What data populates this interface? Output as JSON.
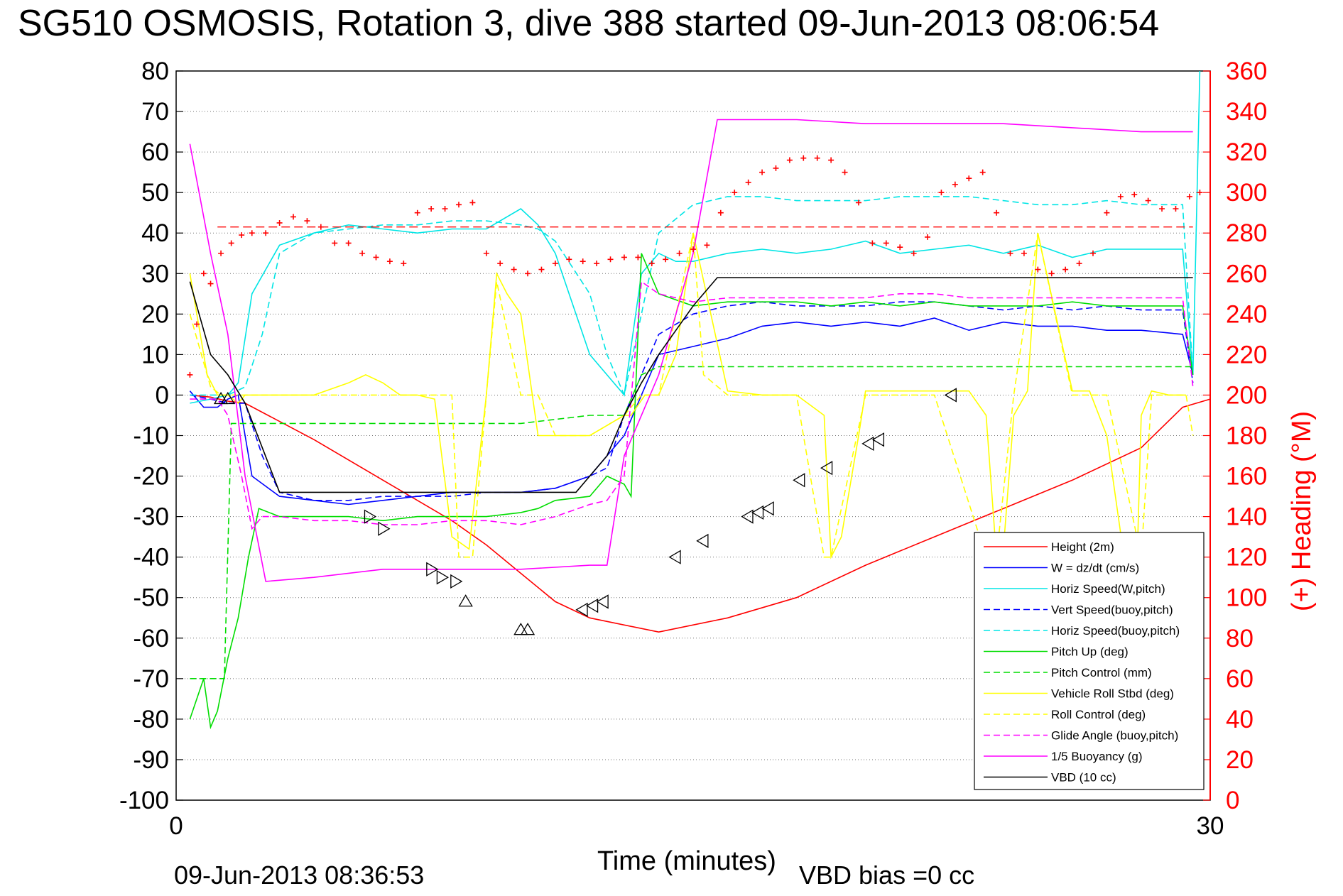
{
  "chart_data": {
    "type": "line",
    "title": "SG510 OSMOSIS, Rotation 3, dive 388 started 09-Jun-2013 08:06:54",
    "xlabel": "Time (minutes)",
    "xlim": [
      0,
      30
    ],
    "x_ticks": [
      "0",
      "30"
    ],
    "ylim": [
      -100,
      80
    ],
    "y_ticks": [
      "80",
      "70",
      "60",
      "50",
      "40",
      "30",
      "20",
      "10",
      "0",
      "-10",
      "-20",
      "-30",
      "-40",
      "-50",
      "-60",
      "-70",
      "-80",
      "-90",
      "-100"
    ],
    "y2label": "(+) Heading (°M)",
    "y2lim": [
      0,
      360
    ],
    "y2_ticks": [
      "360",
      "340",
      "320",
      "300",
      "280",
      "260",
      "240",
      "220",
      "200",
      "180",
      "160",
      "140",
      "120",
      "100",
      "80",
      "60",
      "40",
      "20",
      "0"
    ],
    "grid": true,
    "legend_position": "bottom-right",
    "footer_left": "09-Jun-2013 08:36:53",
    "footer_right": "VBD bias =0 cc",
    "colors": {
      "height": "#ff0000",
      "w": "#0000ff",
      "horiz_w": "#00e5e5",
      "vert_buoy": "#0000ff",
      "horiz_buoy": "#00e5e5",
      "pitch": "#00dd00",
      "pitch_ctrl": "#00dd00",
      "roll": "#ffff00",
      "roll_ctrl": "#ffff00",
      "glide": "#ff00ff",
      "buoy": "#ff00ff",
      "vbd": "#000000",
      "heading": "#ff0000"
    },
    "series": [
      {
        "name": "Height (2m)",
        "style": "solid",
        "color": "#ff0000",
        "x": [
          0.4,
          1.0,
          1.5,
          2.0,
          4.0,
          6.0,
          8.0,
          9.0,
          10.0,
          11.0,
          12.0,
          14.0,
          16.0,
          18.0,
          20.0,
          22.0,
          24.0,
          26.0,
          28.0,
          29.2,
          30.0
        ],
        "values": [
          0,
          -0.5,
          -1.5,
          -2,
          -11,
          -21,
          -31,
          -37,
          -44,
          -51,
          -55,
          -58.5,
          -55,
          -50,
          -42,
          -35,
          -28,
          -21,
          -13,
          -3,
          -1
        ]
      },
      {
        "name": "W = dz/dt (cm/s)",
        "style": "solid",
        "color": "#0000ff",
        "x": [
          0.4,
          0.8,
          1.2,
          1.5,
          1.8,
          2.2,
          3,
          4,
          5,
          6,
          7,
          8,
          9,
          10,
          11,
          12,
          13,
          14,
          15,
          16,
          17,
          18,
          19,
          20,
          21,
          22,
          23,
          24,
          25,
          26,
          27,
          28,
          29.2,
          29.5
        ],
        "values": [
          1,
          -3,
          -3,
          -1,
          0,
          -20,
          -25,
          -26,
          -27,
          -26,
          -25,
          -24,
          -24,
          -24,
          -23,
          -20,
          -10,
          10,
          12,
          14,
          17,
          18,
          17,
          18,
          17,
          19,
          16,
          18,
          17,
          17,
          16,
          16,
          15,
          5
        ]
      },
      {
        "name": "Horiz Speed(W,pitch)",
        "style": "solid",
        "color": "#00e5e5",
        "x": [
          0.4,
          1.0,
          1.5,
          1.8,
          2.2,
          3,
          4,
          5,
          6,
          7,
          8,
          9,
          10,
          10.5,
          11,
          12,
          13,
          13.5,
          14,
          14.5,
          15,
          16,
          17,
          18,
          19,
          20,
          21,
          22,
          23,
          24,
          25,
          26,
          27,
          28,
          29.2,
          29.5,
          29.7
        ],
        "values": [
          -2,
          -1,
          0,
          3,
          25,
          37,
          40,
          42,
          41,
          40,
          41,
          41,
          46,
          42,
          35,
          10,
          0,
          30,
          35,
          33,
          33,
          35,
          36,
          35,
          36,
          38,
          35,
          36,
          37,
          35,
          37,
          34,
          36,
          36,
          36,
          5,
          80
        ]
      },
      {
        "name": "Vert Speed(buoy,pitch)",
        "style": "dashed",
        "color": "#0000ff",
        "x": [
          0.4,
          1.0,
          1.5,
          2.0,
          2.5,
          3,
          4,
          5,
          6,
          7,
          8,
          9,
          10,
          11,
          12,
          12.5,
          13,
          14,
          15,
          16,
          17,
          18,
          19,
          20,
          21,
          22,
          23,
          24,
          25,
          26,
          27,
          28,
          29.2,
          29.5
        ],
        "values": [
          0,
          -1,
          -2,
          -2,
          -15,
          -24,
          -26,
          -26,
          -25,
          -25,
          -25,
          -24,
          -24,
          -23,
          -20,
          -18,
          -5,
          15,
          20,
          22,
          23,
          22,
          22,
          22,
          23,
          23,
          22,
          21,
          22,
          21,
          22,
          21,
          21,
          3
        ]
      },
      {
        "name": "Horiz Speed(buoy,pitch)",
        "style": "dashed",
        "color": "#00e5e5",
        "x": [
          0.4,
          1.0,
          1.5,
          2.0,
          2.5,
          3,
          4,
          5,
          6,
          7,
          8,
          9,
          10,
          10.5,
          11,
          12,
          12.5,
          13,
          13.5,
          14,
          15,
          16,
          17,
          18,
          19,
          20,
          21,
          22,
          23,
          24,
          25,
          26,
          27,
          28,
          29.2,
          29.5
        ],
        "values": [
          0,
          0,
          0,
          2,
          15,
          35,
          40,
          41,
          42,
          42,
          43,
          43,
          42,
          41,
          38,
          25,
          10,
          0,
          20,
          40,
          47,
          49,
          49,
          48,
          48,
          48,
          49,
          49,
          49,
          48,
          47,
          47,
          48,
          47,
          47,
          5
        ]
      },
      {
        "name": "Pitch Up (deg)",
        "style": "solid",
        "color": "#00dd00",
        "x": [
          0.4,
          0.8,
          1.0,
          1.2,
          1.5,
          1.8,
          2.1,
          2.4,
          3,
          4,
          5,
          6,
          7,
          8,
          9,
          10,
          10.5,
          11,
          12,
          12.5,
          13,
          13.2,
          13.5,
          14,
          15,
          16,
          17,
          18,
          19,
          20,
          21,
          22,
          23,
          24,
          25,
          26,
          27,
          28,
          29.2,
          29.5
        ],
        "values": [
          -80,
          -70,
          -82,
          -78,
          -65,
          -55,
          -40,
          -28,
          -30,
          -30,
          -30,
          -31,
          -30,
          -30,
          -30,
          -29,
          -28,
          -26,
          -25,
          -20,
          -22,
          -25,
          35,
          25,
          22,
          23,
          23,
          23,
          22,
          23,
          22,
          23,
          22,
          22,
          22,
          23,
          22,
          22,
          22,
          5
        ]
      },
      {
        "name": "Pitch Control (mm)",
        "style": "dashed",
        "color": "#00dd00",
        "x": [
          0.4,
          1.4,
          1.6,
          2.2,
          4,
          8,
          10,
          12,
          13,
          13.5,
          14,
          16,
          20,
          24,
          28,
          29.5
        ],
        "values": [
          -70,
          -70,
          -7,
          -7,
          -7,
          -7,
          -7,
          -5,
          -5,
          5,
          7,
          7,
          7,
          7,
          7,
          7
        ]
      },
      {
        "name": "Vehicle Roll Stbd (deg)",
        "style": "solid",
        "color": "#ffff00",
        "x": [
          0.4,
          0.6,
          0.9,
          1.2,
          1.5,
          1.8,
          2,
          3,
          4,
          5,
          5.5,
          6,
          6.5,
          7,
          7.5,
          8,
          8.5,
          9,
          9.3,
          9.6,
          10,
          10.5,
          11,
          12,
          13,
          13.2,
          13.6,
          14,
          14.5,
          15,
          16,
          17,
          18,
          18.8,
          19,
          19.3,
          19.8,
          20,
          21,
          22,
          23,
          23.5,
          23.8,
          24,
          24.3,
          24.7,
          25,
          26,
          26.5,
          27,
          27.5,
          27.9,
          28,
          28.3,
          28.8,
          29.3
        ],
        "values": [
          30,
          20,
          5,
          0,
          0,
          -2,
          0,
          0,
          0,
          3,
          5,
          3,
          0,
          0,
          -1,
          -35,
          -38,
          0,
          30,
          25,
          20,
          -10,
          -10,
          -10,
          -5,
          -5,
          0,
          0,
          10,
          40,
          1,
          0,
          0,
          -5,
          -40,
          -35,
          -10,
          1,
          1,
          1,
          1,
          -5,
          -40,
          -38,
          -5,
          1,
          40,
          1,
          1,
          -10,
          -40,
          -35,
          -5,
          1,
          0,
          0
        ]
      },
      {
        "name": "Roll Control (deg)",
        "style": "dashed",
        "color": "#ffff00",
        "x": [
          0.4,
          1.0,
          1.3,
          2,
          4,
          6,
          8,
          8.2,
          8.6,
          9,
          9.3,
          10,
          10.5,
          11,
          12,
          13,
          13.5,
          14,
          15,
          15.3,
          16,
          18,
          18.8,
          19,
          20,
          22,
          23.5,
          23.8,
          24.3,
          25,
          26,
          27,
          28,
          28.3,
          29.3,
          29.5
        ],
        "values": [
          20,
          2,
          0,
          0,
          0,
          0,
          0,
          -40,
          -40,
          0,
          28,
          0,
          0,
          -10,
          -10,
          -5,
          0,
          0,
          40,
          5,
          0,
          0,
          -40,
          -40,
          0,
          0,
          -40,
          -40,
          0,
          40,
          0,
          0,
          -40,
          0,
          0,
          -10
        ]
      },
      {
        "name": "Glide Angle (buoy,pitch)",
        "style": "dashed",
        "color": "#ff00ff",
        "x": [
          0.4,
          1.2,
          1.5,
          1.9,
          2.2,
          2.5,
          3,
          4,
          5,
          6,
          7,
          8,
          9,
          10,
          11,
          12,
          12.5,
          13,
          13.5,
          14,
          15,
          16,
          17,
          18,
          19,
          20,
          21,
          22,
          23,
          24,
          25,
          26,
          27,
          28,
          29.2,
          29.5
        ],
        "values": [
          -1,
          -1,
          -5,
          -20,
          -33,
          -30,
          -30,
          -31,
          -31,
          -32,
          -32,
          -31,
          -31,
          -32,
          -30,
          -27,
          -26,
          -20,
          28,
          25,
          23,
          24,
          24,
          24,
          24,
          24,
          25,
          25,
          24,
          24,
          24,
          24,
          24,
          24,
          24,
          2
        ]
      },
      {
        "name": "1/5 Buoyancy (g)",
        "style": "solid",
        "color": "#ff00ff",
        "x": [
          0.4,
          1.0,
          1.5,
          2.0,
          2.6,
          4,
          6,
          8,
          10,
          12,
          12.5,
          13,
          14,
          15,
          15.7,
          16,
          18,
          20,
          22,
          24,
          26,
          28,
          29.2,
          29.5
        ],
        "values": [
          62,
          35,
          15,
          -20,
          -46,
          -45,
          -43,
          -43,
          -43,
          -42,
          -42,
          -15,
          5,
          35,
          68,
          68,
          68,
          67,
          67,
          67,
          66,
          65,
          65,
          65
        ]
      },
      {
        "name": "VBD (10 cc)",
        "style": "solid",
        "color": "#000000",
        "x": [
          0.4,
          1.0,
          1.5,
          2.0,
          3.0,
          6,
          8,
          10,
          11,
          11.6,
          12.5,
          13,
          13.5,
          14,
          14.5,
          15,
          15.7,
          16,
          20,
          24,
          28,
          29.5
        ],
        "values": [
          28,
          10,
          5,
          -2,
          -24,
          -24,
          -24,
          -24,
          -24,
          -24,
          -15,
          -5,
          3,
          10,
          16,
          22,
          29,
          29,
          29,
          29,
          29,
          29
        ]
      },
      {
        "name": "Heading",
        "style": "markers",
        "axis": "right",
        "color": "#ff0000",
        "x": [
          0.4,
          0.6,
          0.8,
          1.0,
          1.3,
          1.6,
          1.9,
          2.2,
          2.6,
          3.0,
          3.4,
          3.8,
          4.2,
          4.6,
          5.0,
          5.4,
          5.8,
          6.2,
          6.6,
          7.0,
          7.4,
          7.8,
          8.2,
          8.6,
          9.0,
          9.4,
          9.8,
          10.2,
          10.6,
          11.0,
          11.4,
          11.8,
          12.2,
          12.6,
          13.0,
          13.4,
          13.8,
          14.2,
          14.6,
          15.0,
          15.4,
          15.8,
          16.2,
          16.6,
          17.0,
          17.4,
          17.8,
          18.2,
          18.6,
          19.0,
          19.4,
          19.8,
          20.2,
          20.6,
          21.0,
          21.4,
          21.8,
          22.2,
          22.6,
          23.0,
          23.4,
          23.8,
          24.2,
          24.6,
          25.0,
          25.4,
          25.8,
          26.2,
          26.6,
          27.0,
          27.4,
          27.8,
          28.2,
          28.6,
          29.0,
          29.4,
          29.7
        ],
        "values": [
          210,
          235,
          260,
          255,
          270,
          275,
          279,
          280,
          280,
          285,
          288,
          286,
          283,
          275,
          275,
          270,
          268,
          266,
          265,
          290,
          292,
          292,
          294,
          295,
          270,
          265,
          262,
          260,
          262,
          265,
          267,
          266,
          265,
          267,
          268,
          268,
          265,
          267,
          270,
          272,
          274,
          290,
          300,
          305,
          310,
          312,
          316,
          317,
          317,
          316,
          310,
          295,
          275,
          275,
          273,
          270,
          278,
          300,
          304,
          307,
          310,
          290,
          270,
          270,
          262,
          260,
          262,
          265,
          270,
          290,
          298,
          299,
          296,
          292,
          292,
          298,
          300
        ]
      }
    ]
  }
}
